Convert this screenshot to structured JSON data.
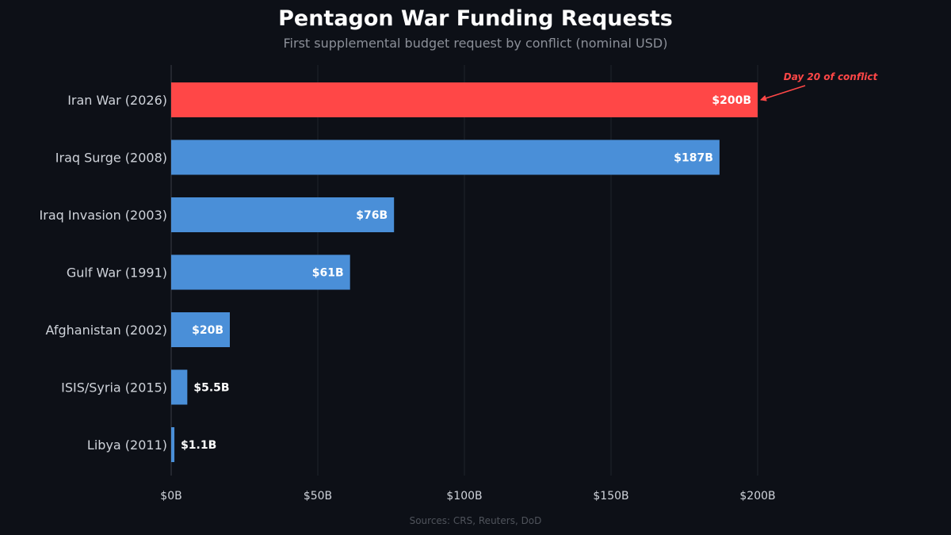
{
  "header": {
    "title": "Pentagon War Funding Requests",
    "subtitle": "First supplemental budget request by conflict (nominal USD)"
  },
  "footer": {
    "source": "Sources: CRS, Reuters, DoD"
  },
  "colors": {
    "background": "#0d1017",
    "highlight_bar": "#ff4747",
    "bar": "#4a8fd8",
    "gridline": "#262a33",
    "axis": "#3a3e47",
    "annotation": "#ff4747"
  },
  "chart_data": {
    "type": "bar",
    "orientation": "horizontal",
    "title": "Pentagon War Funding Requests",
    "subtitle": "First supplemental budget request by conflict (nominal USD)",
    "categories": [
      "Iran War (2026)",
      "Iraq Surge (2008)",
      "Iraq Invasion (2003)",
      "Gulf War (1991)",
      "Afghanistan (2002)",
      "ISIS/Syria (2015)",
      "Libya (2011)"
    ],
    "values": [
      200,
      187,
      76,
      61,
      20,
      5.5,
      1.1
    ],
    "value_labels": [
      "$200B",
      "$187B",
      "$76B",
      "$61B",
      "$20B",
      "$5.5B",
      "$1.1B"
    ],
    "highlight": [
      true,
      false,
      false,
      false,
      false,
      false,
      false
    ],
    "unit": "billion USD",
    "xlim": [
      0,
      200
    ],
    "xticks": [
      0,
      50,
      100,
      150,
      200
    ],
    "xtick_labels": [
      "$0B",
      "$50B",
      "$100B",
      "$150B",
      "$200B"
    ],
    "xlabel": "",
    "ylabel": "",
    "grid": "vertical",
    "annotation": {
      "text": "Day 20 of conflict",
      "target_category": "Iran War (2026)",
      "target_value": 200,
      "color": "#ff4747"
    }
  }
}
